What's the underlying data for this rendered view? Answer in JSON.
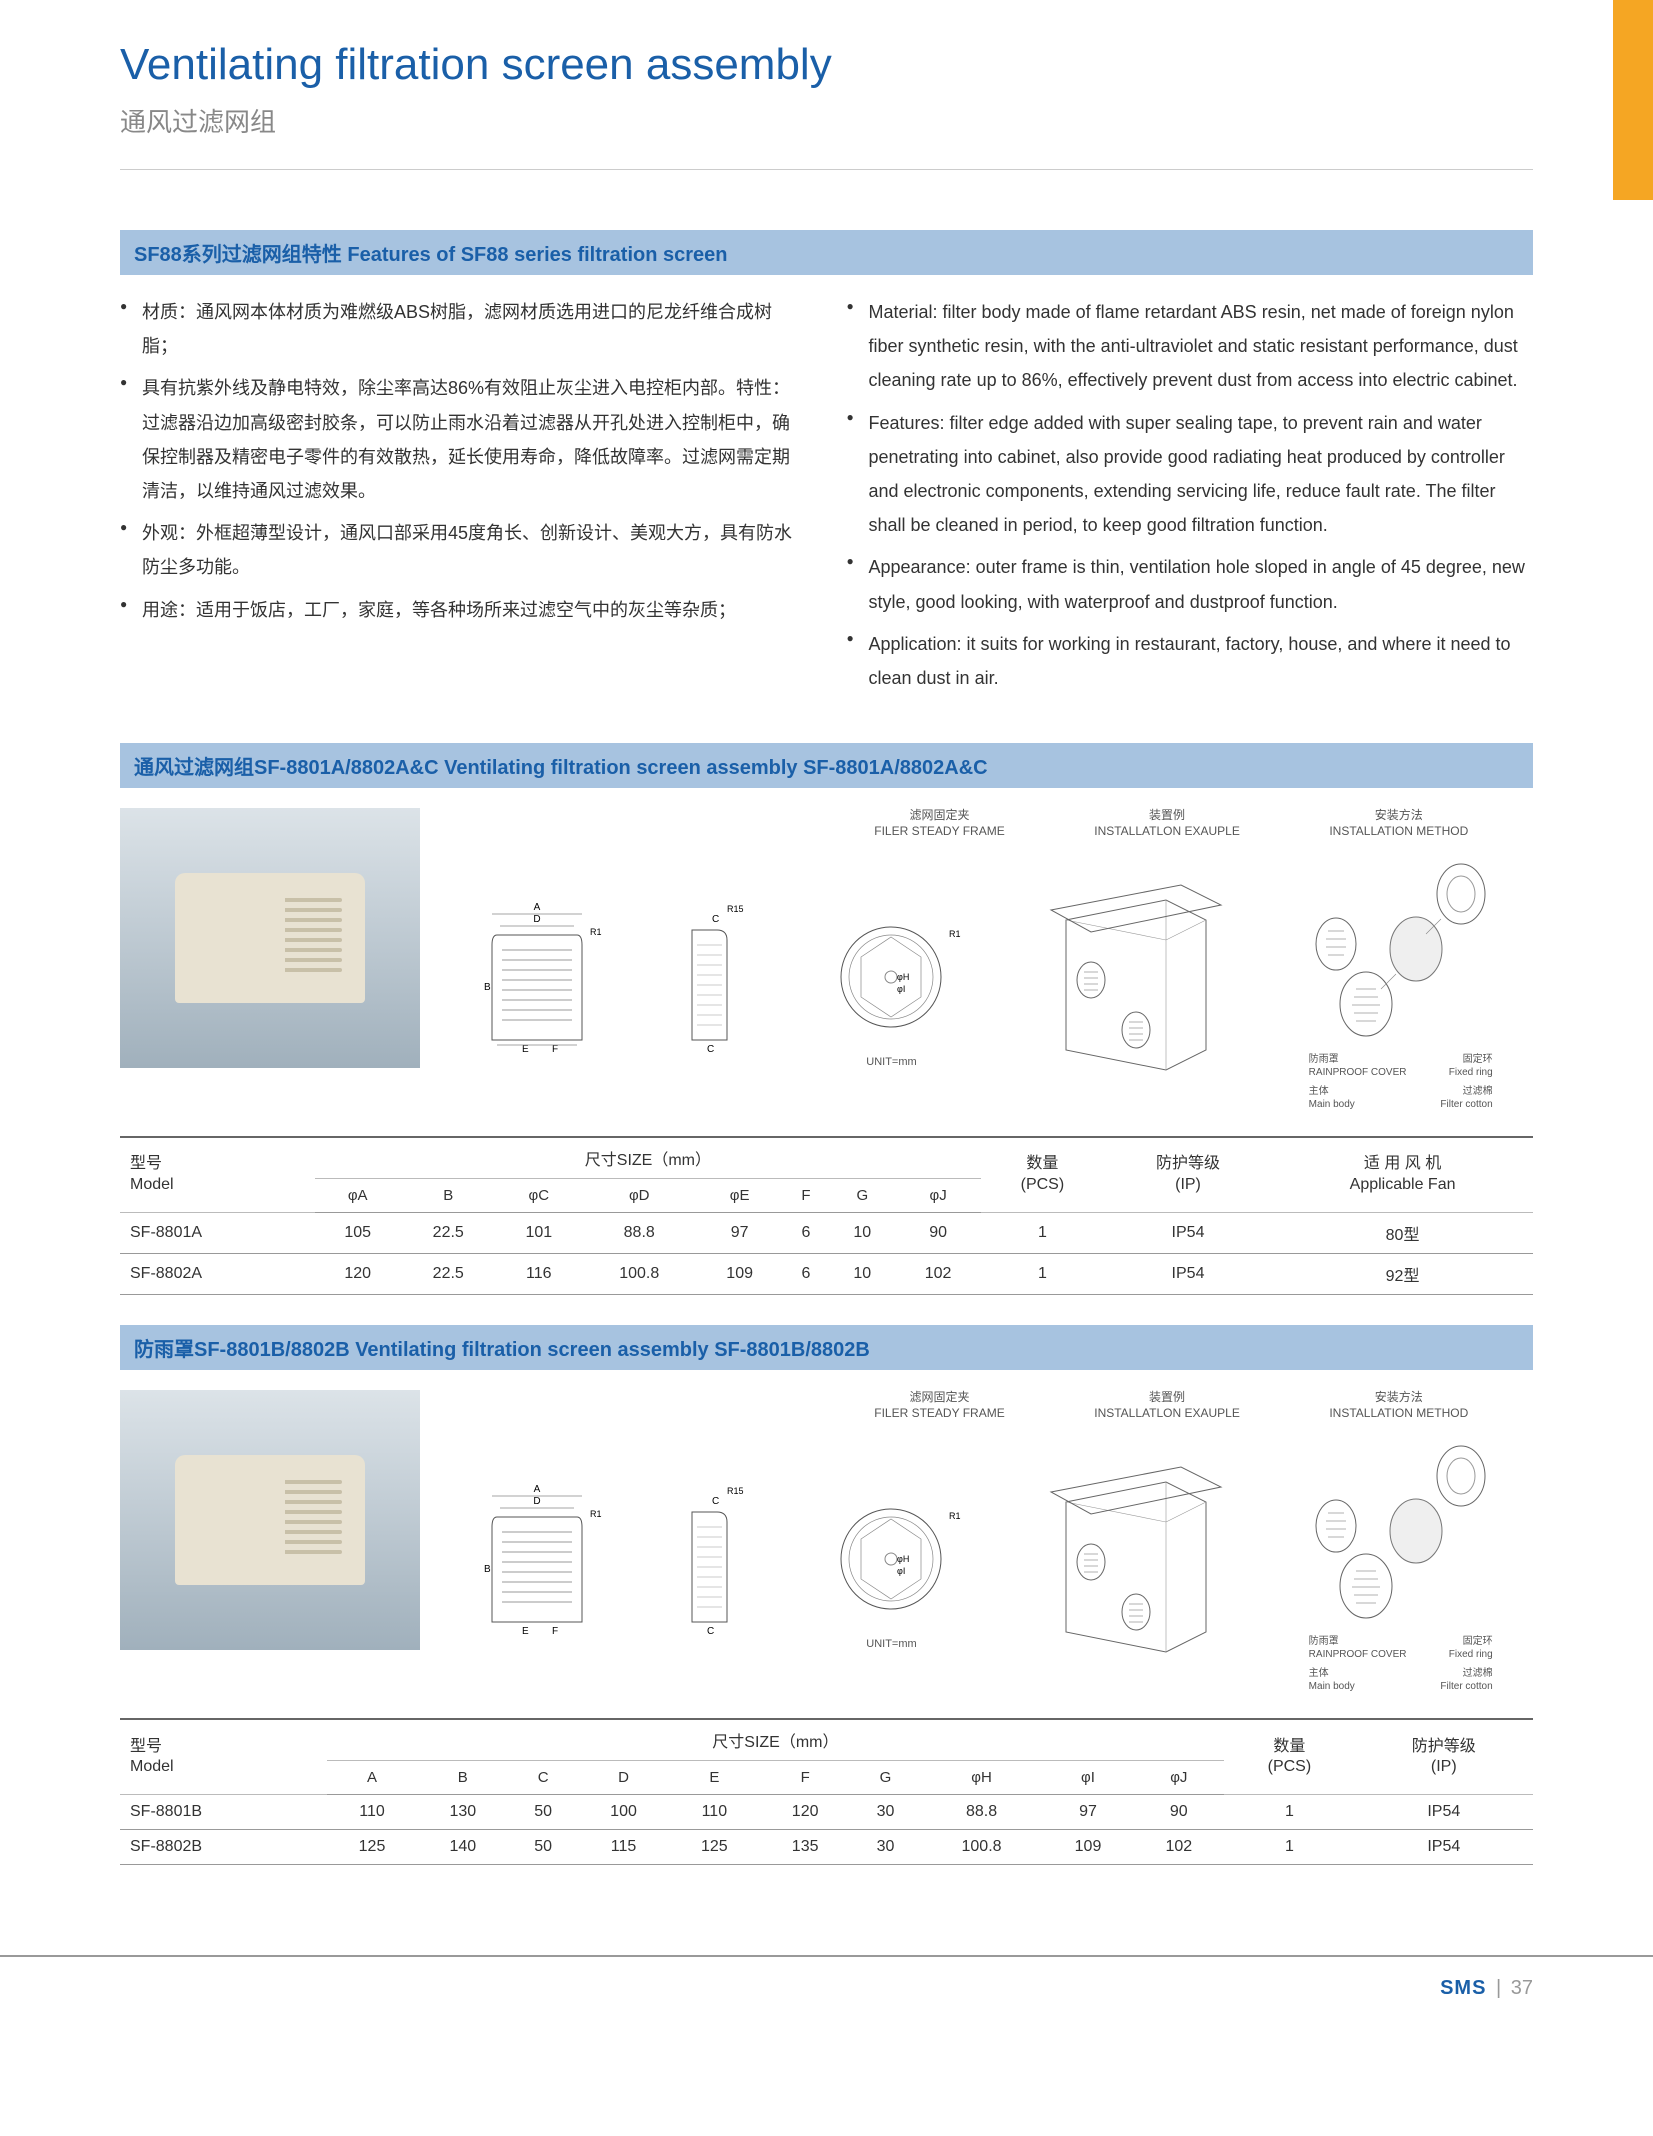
{
  "header": {
    "title_en": "Ventilating filtration screen assembly",
    "title_cn": "通风过滤网组"
  },
  "section_features": {
    "bar": "SF88系列过滤网组特性  Features of SF88 series filtration screen",
    "cn": [
      "材质：通风网本体材质为难燃级ABS树脂，滤网材质选用进口的尼龙纤维合成树脂；",
      "具有抗紫外线及静电特效，除尘率高达86%有效阻止灰尘进入电控柜内部。特性：过滤器沿边加高级密封胶条，可以防止雨水沿着过滤器从开孔处进入控制柜中，确保控制器及精密电子零件的有效散热，延长使用寿命，降低故障率。过滤网需定期清洁，以维持通风过滤效果。",
      "外观：外框超薄型设计，通风口部采用45度角长、创新设计、美观大方，具有防水防尘多功能。",
      "用途：适用于饭店，工厂，家庭，等各种场所来过滤空气中的灰尘等杂质；"
    ],
    "en": [
      "Material: filter body made of flame retardant ABS resin, net made of foreign nylon fiber synthetic resin, with the anti-ultraviolet and static resistant performance, dust cleaning rate up to 86%, effectively prevent dust from access into electric cabinet.",
      "Features: filter edge added with super sealing tape, to prevent rain and water penetrating into cabinet, also provide good radiating heat produced by controller and electronic components, extending servicing life, reduce fault rate. The filter shall be cleaned in period, to keep good filtration function.",
      "Appearance: outer frame is thin, ventilation hole sloped in angle of 45 degree, new style, good looking, with waterproof and dustproof function.",
      "Application: it suits for working in restaurant, factory, house, and where it need to clean dust in air."
    ]
  },
  "diagram_labels": {
    "install_example_cn": "装置例",
    "install_example_en": "INSTALLATLON EXAUPLE",
    "install_method_cn": "安装方法",
    "install_method_en": "INSTALLATION METHOD",
    "filter_frame_cn": "滤网固定夹",
    "filter_frame_en": "FILER STEADY FRAME",
    "rainproof_cn": "防雨罩",
    "rainproof_en": "RAINPROOF COVER",
    "fixed_ring_cn": "固定环",
    "fixed_ring_en": "Fixed ring",
    "filter_cotton_cn": "过滤棉",
    "filter_cotton_en": "Filter cotton",
    "main_body_cn": "主体",
    "main_body_en": "Main body",
    "unit": "UNIT=mm",
    "r15": "R15"
  },
  "section_a": {
    "bar": "通风过滤网组SF-8801A/8802A&C   Ventilating filtration screen assembly SF-8801A/8802A&C",
    "table": {
      "model_hdr_cn": "型号",
      "model_hdr_en": "Model",
      "size_hdr": "尺寸SIZE（mm）",
      "qty_cn": "数量",
      "qty_en": "(PCS)",
      "ip_cn": "防护等级",
      "ip_en": "(IP)",
      "fan_cn": "适 用 风 机",
      "fan_en": "Applicable Fan",
      "cols": [
        "φA",
        "B",
        "φC",
        "φD",
        "φE",
        "F",
        "G",
        "φJ"
      ],
      "rows": [
        {
          "model": "SF-8801A",
          "vals": [
            "105",
            "22.5",
            "101",
            "88.8",
            "97",
            "6",
            "10",
            "90"
          ],
          "qty": "1",
          "ip": "IP54",
          "fan": "80型"
        },
        {
          "model": "SF-8802A",
          "vals": [
            "120",
            "22.5",
            "116",
            "100.8",
            "109",
            "6",
            "10",
            "102"
          ],
          "qty": "1",
          "ip": "IP54",
          "fan": "92型"
        }
      ]
    }
  },
  "section_b": {
    "bar": "防雨罩SF-8801B/8802B   Ventilating filtration screen assembly SF-8801B/8802B",
    "table": {
      "model_hdr_cn": "型号",
      "model_hdr_en": "Model",
      "size_hdr": "尺寸SIZE（mm）",
      "qty_cn": "数量",
      "qty_en": "(PCS)",
      "ip_cn": "防护等级",
      "ip_en": "(IP)",
      "cols": [
        "A",
        "B",
        "C",
        "D",
        "E",
        "F",
        "G",
        "φH",
        "φI",
        "φJ"
      ],
      "rows": [
        {
          "model": "SF-8801B",
          "vals": [
            "110",
            "130",
            "50",
            "100",
            "110",
            "120",
            "30",
            "88.8",
            "97",
            "90"
          ],
          "qty": "1",
          "ip": "IP54"
        },
        {
          "model": "SF-8802B",
          "vals": [
            "125",
            "140",
            "50",
            "115",
            "125",
            "135",
            "30",
            "100.8",
            "109",
            "102"
          ],
          "qty": "1",
          "ip": "IP54"
        }
      ]
    }
  },
  "footer": {
    "brand": "SMS",
    "sep": "|",
    "page": "37"
  },
  "colors": {
    "blue_text": "#1a5fa8",
    "bar_bg": "#a7c3e0",
    "orange": "#f5a623",
    "gray_sub": "#888888"
  }
}
